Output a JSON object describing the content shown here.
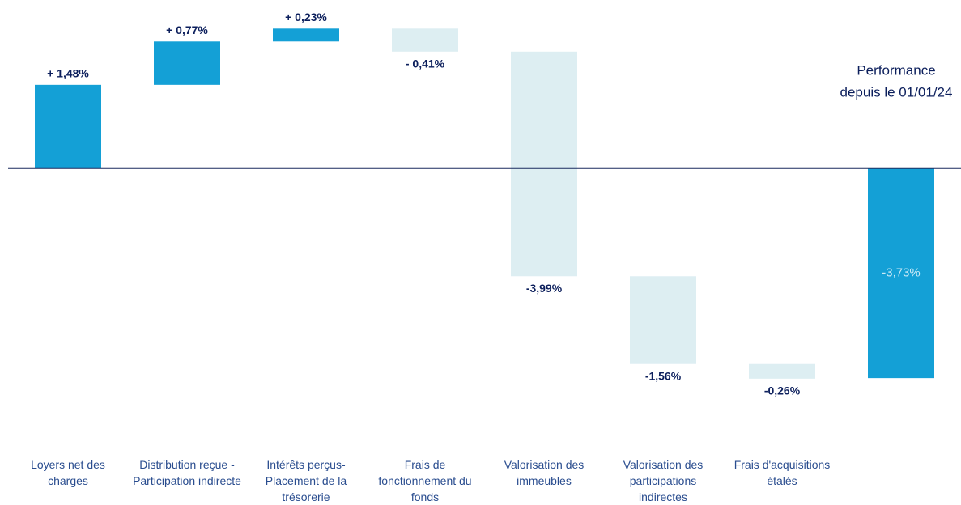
{
  "chart_data": {
    "type": "waterfall",
    "title": [
      "Performance",
      "depuis le 01/01/24"
    ],
    "categories": [
      "Loyers net des charges",
      "Distribution reçue - Participation indirecte",
      "Intérêts perçus- Placement de la trésorerie",
      "Frais de fonctionnement du fonds",
      "Valorisation des immeubles",
      "Valorisation des participations indirectes",
      "Frais d'acquisitions étalés",
      null
    ],
    "values": [
      1.48,
      0.77,
      0.23,
      -0.41,
      -3.99,
      -1.56,
      -0.26,
      -3.73
    ],
    "value_labels": [
      "+ 1,48%",
      "+ 0,77%",
      "+ 0,23%",
      "- 0,41%",
      "-3,99%",
      "-1,56%",
      "-0,26%",
      "-3,73%"
    ],
    "measures": [
      "relative",
      "relative",
      "relative",
      "relative",
      "relative",
      "relative",
      "relative",
      "total"
    ],
    "increase_color": "#14a0d6",
    "decrease_color": "#ddeef2",
    "total_color": "#14a0d6",
    "ylim": [
      -3.8,
      2.7
    ]
  }
}
